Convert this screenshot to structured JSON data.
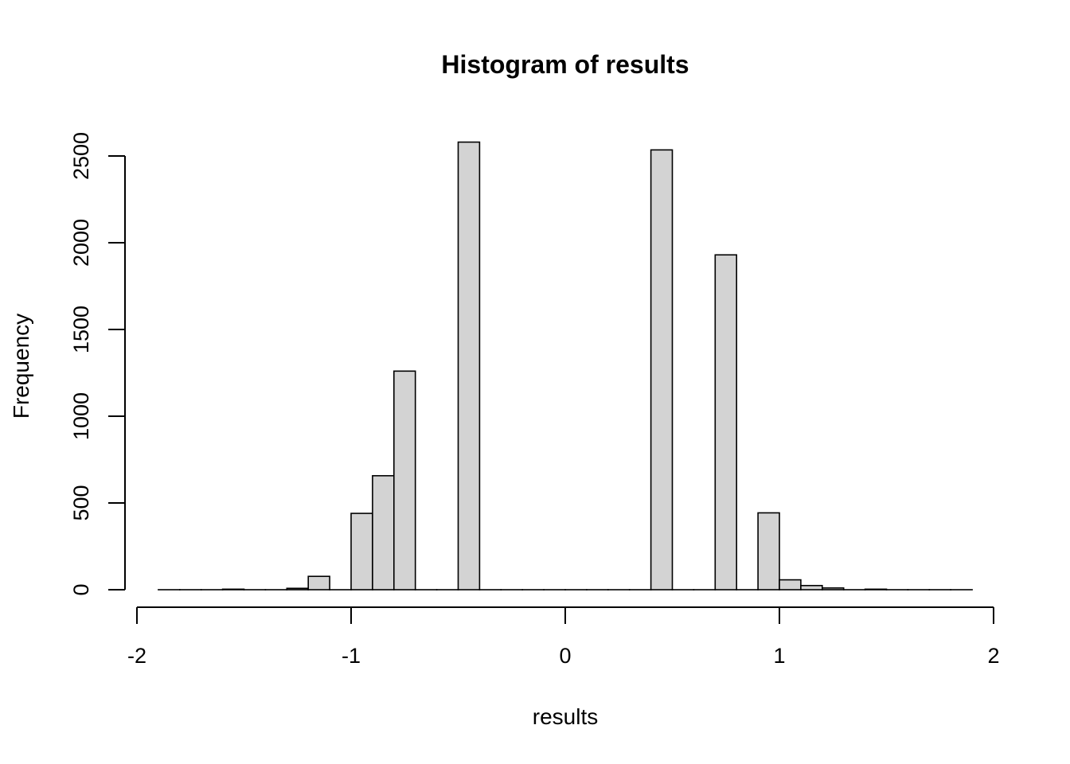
{
  "chart_data": {
    "type": "bar",
    "title": "Histogram of results",
    "xlabel": "results",
    "ylabel": "Frequency",
    "xlim": [
      -2,
      2
    ],
    "ylim": [
      0,
      2500
    ],
    "x_ticks": [
      -2,
      -1,
      0,
      1,
      2
    ],
    "y_ticks": [
      0,
      500,
      1000,
      1500,
      2000,
      2500
    ],
    "grid": false,
    "bar_fill": "#d3d3d3",
    "bar_stroke": "#000000",
    "bin_width": 0.1,
    "bins": [
      {
        "x0": -1.9,
        "x1": -1.8,
        "count": 0
      },
      {
        "x0": -1.8,
        "x1": -1.7,
        "count": 0
      },
      {
        "x0": -1.7,
        "x1": -1.6,
        "count": 0
      },
      {
        "x0": -1.6,
        "x1": -1.5,
        "count": 3
      },
      {
        "x0": -1.5,
        "x1": -1.4,
        "count": 0
      },
      {
        "x0": -1.4,
        "x1": -1.3,
        "count": 0
      },
      {
        "x0": -1.3,
        "x1": -1.2,
        "count": 8
      },
      {
        "x0": -1.2,
        "x1": -1.1,
        "count": 77
      },
      {
        "x0": -1.1,
        "x1": -1.0,
        "count": 0
      },
      {
        "x0": -1.0,
        "x1": -0.9,
        "count": 440
      },
      {
        "x0": -0.9,
        "x1": -0.8,
        "count": 657
      },
      {
        "x0": -0.8,
        "x1": -0.7,
        "count": 1260
      },
      {
        "x0": -0.7,
        "x1": -0.6,
        "count": 0
      },
      {
        "x0": -0.6,
        "x1": -0.5,
        "count": 0
      },
      {
        "x0": -0.5,
        "x1": -0.4,
        "count": 2580
      },
      {
        "x0": -0.4,
        "x1": -0.3,
        "count": 0
      },
      {
        "x0": -0.3,
        "x1": -0.2,
        "count": 0
      },
      {
        "x0": -0.2,
        "x1": -0.1,
        "count": 0
      },
      {
        "x0": -0.1,
        "x1": 0.0,
        "count": 0
      },
      {
        "x0": 0.0,
        "x1": 0.1,
        "count": 0
      },
      {
        "x0": 0.1,
        "x1": 0.2,
        "count": 0
      },
      {
        "x0": 0.2,
        "x1": 0.3,
        "count": 0
      },
      {
        "x0": 0.3,
        "x1": 0.4,
        "count": 0
      },
      {
        "x0": 0.4,
        "x1": 0.5,
        "count": 2535
      },
      {
        "x0": 0.5,
        "x1": 0.6,
        "count": 0
      },
      {
        "x0": 0.6,
        "x1": 0.7,
        "count": 0
      },
      {
        "x0": 0.7,
        "x1": 0.8,
        "count": 1930
      },
      {
        "x0": 0.8,
        "x1": 0.9,
        "count": 0
      },
      {
        "x0": 0.9,
        "x1": 1.0,
        "count": 443
      },
      {
        "x0": 1.0,
        "x1": 1.1,
        "count": 57
      },
      {
        "x0": 1.1,
        "x1": 1.2,
        "count": 24
      },
      {
        "x0": 1.2,
        "x1": 1.3,
        "count": 10
      },
      {
        "x0": 1.3,
        "x1": 1.4,
        "count": 0
      },
      {
        "x0": 1.4,
        "x1": 1.5,
        "count": 3
      },
      {
        "x0": 1.5,
        "x1": 1.6,
        "count": 0
      },
      {
        "x0": 1.6,
        "x1": 1.7,
        "count": 0
      },
      {
        "x0": 1.7,
        "x1": 1.8,
        "count": 0
      },
      {
        "x0": 1.8,
        "x1": 1.9,
        "count": 0
      }
    ]
  }
}
